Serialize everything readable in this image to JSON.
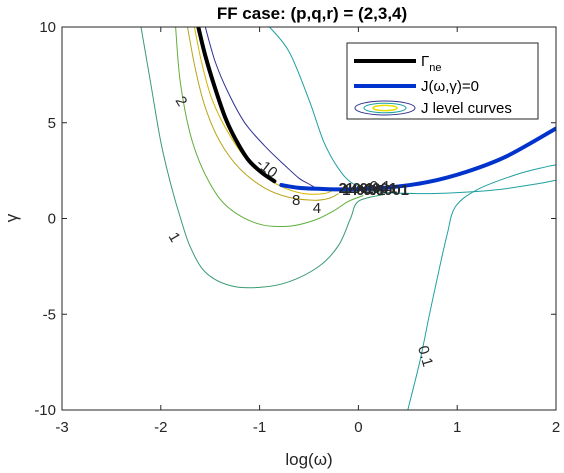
{
  "chart_data": {
    "type": "line",
    "title": "FF case: (p,q,r) = (2,3,4)",
    "xlabel": "log(ω)",
    "ylabel": "γ",
    "xlim": [
      -3,
      2
    ],
    "ylim": [
      -10,
      10
    ],
    "xticks": [
      "-3",
      "-2",
      "-1",
      "0",
      "1",
      "2"
    ],
    "xtick_values": [
      -3,
      -2,
      -1,
      0,
      1,
      2
    ],
    "yticks": [
      "-10",
      "-5",
      "0",
      "5",
      "10"
    ],
    "ytick_values": [
      -10,
      -5,
      0,
      5,
      10
    ],
    "grid": false,
    "legend_position": "top-right",
    "legend": {
      "gamma_ne": {
        "prefix": "Γ",
        "subscript": "ne"
      },
      "j_zero": "J(ω,γ)=0",
      "j_levels": "J level curves"
    },
    "series": [
      {
        "key": "gamma_ne",
        "color": "#000000",
        "points": [
          [
            -1.62,
            10
          ],
          [
            -1.55,
            8.5
          ],
          [
            -1.45,
            6.8
          ],
          [
            -1.35,
            5.3
          ],
          [
            -1.25,
            4.2
          ],
          [
            -1.12,
            3.1
          ],
          [
            -0.98,
            2.4
          ],
          [
            -0.85,
            1.95
          ]
        ]
      },
      {
        "key": "j_zero",
        "color": "#0033cc",
        "points": [
          [
            -0.78,
            1.75
          ],
          [
            -0.6,
            1.6
          ],
          [
            -0.4,
            1.55
          ],
          [
            -0.1,
            1.52
          ],
          [
            0.3,
            1.62
          ],
          [
            0.7,
            1.9
          ],
          [
            1.1,
            2.45
          ],
          [
            1.5,
            3.25
          ],
          [
            2.0,
            4.7
          ]
        ]
      }
    ],
    "contours": [
      {
        "level": "0.1",
        "color": "#1fa0a0",
        "points": [
          [
            -0.9,
            10
          ],
          [
            -0.7,
            8.7
          ],
          [
            -0.5,
            6.2
          ],
          [
            -0.35,
            4.0
          ],
          [
            -0.2,
            2.6
          ],
          [
            -0.05,
            1.8
          ],
          [
            0.2,
            1.4
          ],
          [
            0.6,
            1.3
          ],
          [
            1.0,
            1.35
          ],
          [
            1.4,
            1.5
          ],
          [
            1.8,
            1.8
          ],
          [
            2.0,
            2.0
          ]
        ]
      },
      {
        "level": "0.1",
        "color": "#1fa0a0",
        "points": [
          [
            0.5,
            -10
          ],
          [
            0.62,
            -7.5
          ],
          [
            0.72,
            -5.0
          ],
          [
            0.82,
            -2.6
          ],
          [
            0.9,
            -0.8
          ],
          [
            0.98,
            0.6
          ],
          [
            1.2,
            1.5
          ],
          [
            1.6,
            2.3
          ],
          [
            1.9,
            2.7
          ],
          [
            2.0,
            2.8
          ]
        ]
      },
      {
        "level": "1",
        "color": "#3a9a72",
        "points": [
          [
            -2.2,
            10
          ],
          [
            -2.1,
            7.0
          ],
          [
            -2.0,
            4.0
          ],
          [
            -1.9,
            1.8
          ],
          [
            -1.8,
            0.0
          ],
          [
            -1.7,
            -1.5
          ],
          [
            -1.55,
            -2.8
          ],
          [
            -1.3,
            -3.5
          ],
          [
            -1.0,
            -3.6
          ],
          [
            -0.7,
            -3.3
          ],
          [
            -0.4,
            -2.5
          ],
          [
            -0.2,
            -1.4
          ],
          [
            -0.08,
            0.0
          ],
          [
            0.0,
            0.9
          ],
          [
            0.25,
            1.25
          ]
        ]
      },
      {
        "level": "2",
        "color": "#5fae3a",
        "points": [
          [
            -1.85,
            10
          ],
          [
            -1.8,
            7.0
          ],
          [
            -1.68,
            4.0
          ],
          [
            -1.5,
            1.8
          ],
          [
            -1.3,
            0.5
          ],
          [
            -1.0,
            -0.3
          ],
          [
            -0.7,
            -0.4
          ],
          [
            -0.45,
            -0.1
          ],
          [
            -0.25,
            0.4
          ],
          [
            -0.1,
            0.9
          ],
          [
            0.05,
            1.2
          ]
        ]
      },
      {
        "level": "4",
        "color": "#b8a418",
        "points": [
          [
            -1.73,
            10
          ],
          [
            -1.65,
            7.8
          ],
          [
            -1.55,
            5.8
          ],
          [
            -1.4,
            4.0
          ],
          [
            -1.2,
            2.6
          ],
          [
            -0.95,
            1.6
          ],
          [
            -0.7,
            1.1
          ],
          [
            -0.45,
            0.95
          ],
          [
            -0.3,
            1.05
          ],
          [
            -0.2,
            1.3
          ]
        ]
      },
      {
        "level": "8",
        "color": "#d8b200",
        "points": [
          [
            -1.66,
            10
          ],
          [
            -1.58,
            8.0
          ],
          [
            -1.48,
            6.2
          ],
          [
            -1.32,
            4.5
          ],
          [
            -1.12,
            3.0
          ],
          [
            -0.92,
            2.1
          ],
          [
            -0.75,
            1.6
          ],
          [
            -0.55,
            1.3
          ],
          [
            -0.35,
            1.3
          ],
          [
            -0.25,
            1.5
          ]
        ]
      },
      {
        "level": "-10",
        "color": "#303090",
        "points": [
          [
            -1.55,
            10
          ],
          [
            -1.45,
            8.2
          ],
          [
            -1.32,
            6.6
          ],
          [
            -1.15,
            5.0
          ],
          [
            -0.95,
            3.8
          ],
          [
            -0.75,
            2.8
          ],
          [
            -0.6,
            2.1
          ],
          [
            -0.5,
            1.8
          ],
          [
            -0.45,
            1.65
          ]
        ]
      }
    ],
    "contour_labels": [
      {
        "text": "2",
        "x": -1.8,
        "y": 6.1,
        "angle": 58
      },
      {
        "text": "1",
        "x": -1.87,
        "y": -1.0,
        "angle": 60
      },
      {
        "text": "-10",
        "x": -0.93,
        "y": 2.6,
        "angle": 38
      },
      {
        "text": "8",
        "x": -0.63,
        "y": 0.9,
        "angle": 0
      },
      {
        "text": "4",
        "x": -0.42,
        "y": 0.5,
        "angle": 0
      },
      {
        "text": "0.1",
        "x": 0.67,
        "y": -7.2,
        "angle": 74
      },
      {
        "text": "0.1",
        "x": 0.22,
        "y": 1.65,
        "angle": 0
      }
    ],
    "cluster_labels": [
      "2",
      "1",
      "1",
      "4",
      "0.1",
      "0.01",
      "0.001",
      "0.0001"
    ]
  }
}
